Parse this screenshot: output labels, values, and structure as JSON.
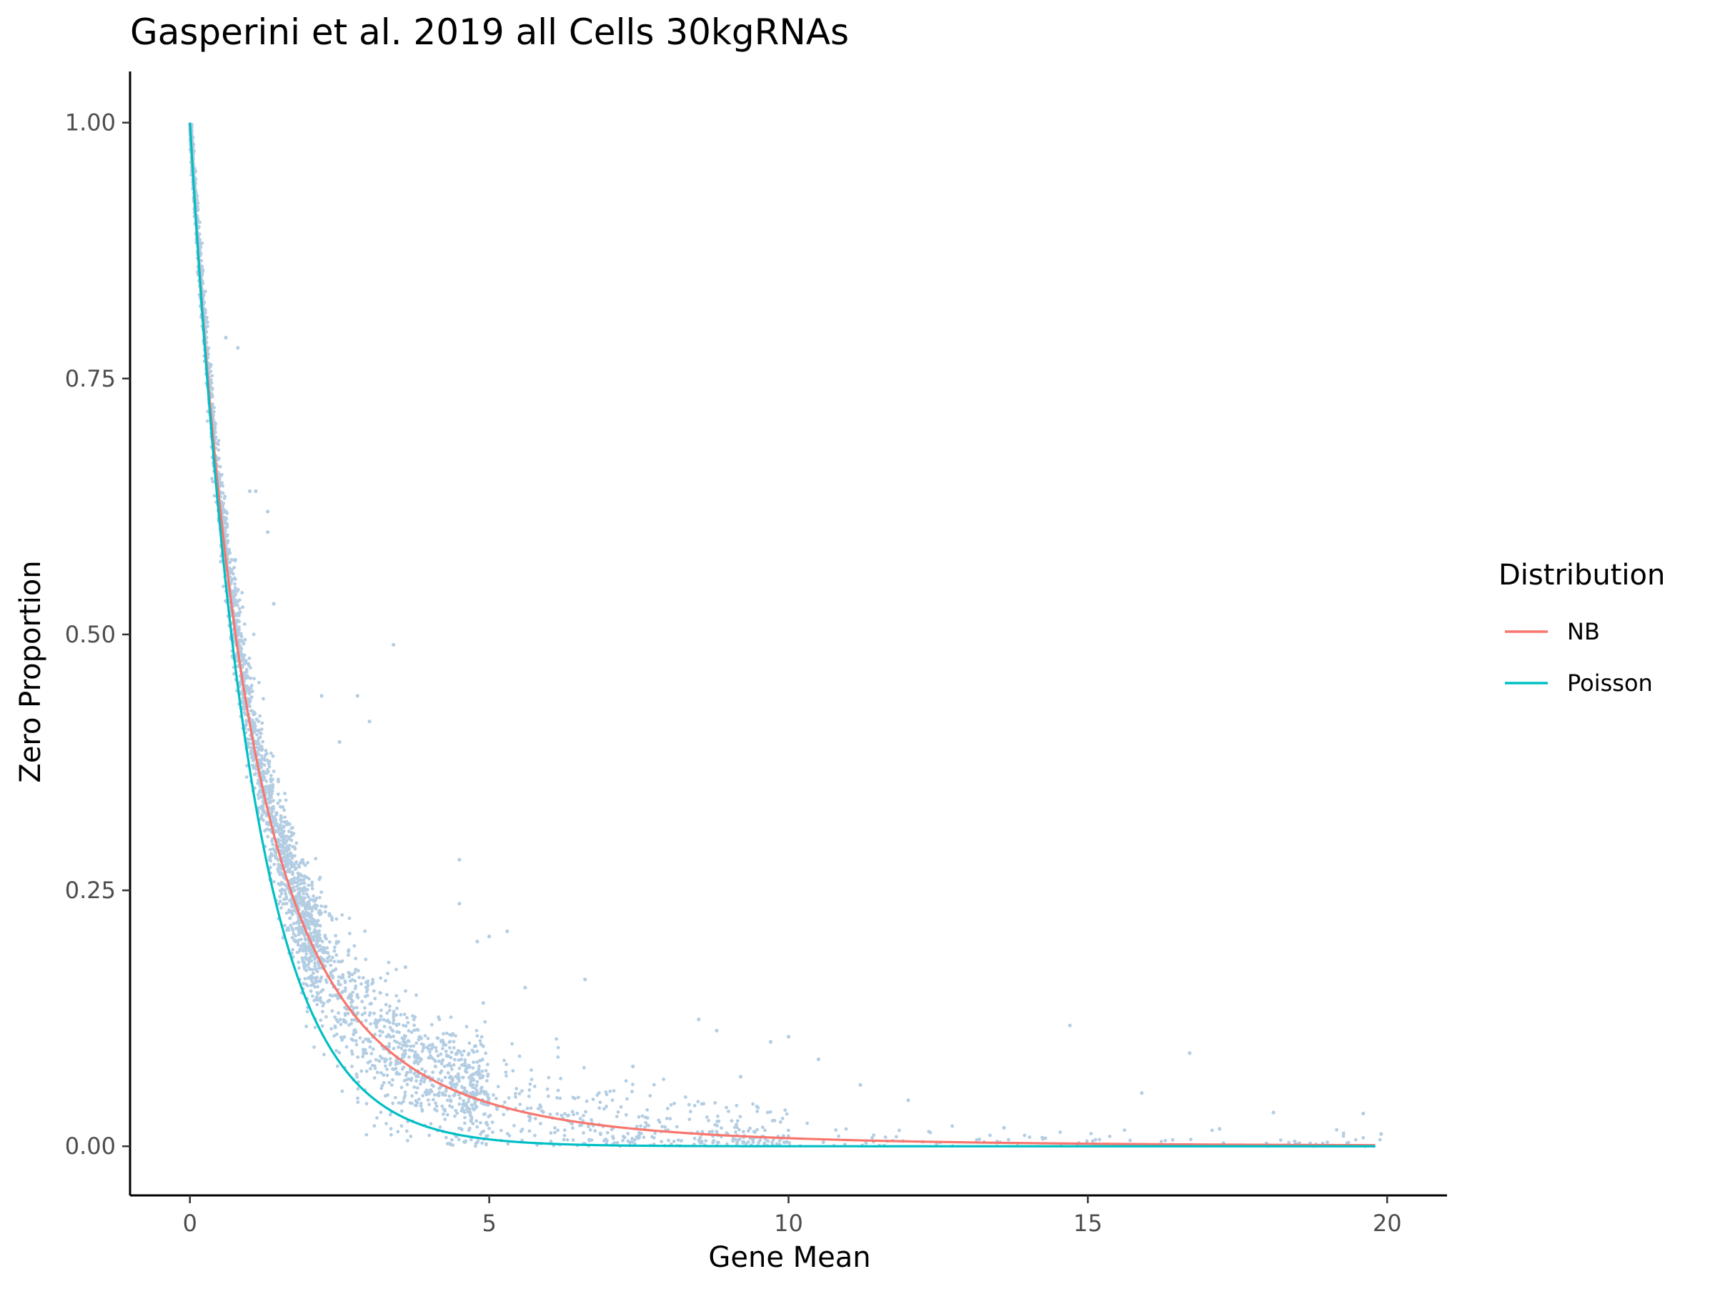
{
  "chart_data": {
    "type": "scatter",
    "title": "Gasperini et al. 2019 all Cells 30kgRNAs",
    "xlabel": "Gene Mean",
    "ylabel": "Zero Proportion",
    "xlim": [
      -1,
      21
    ],
    "ylim": [
      -0.048,
      1.05
    ],
    "xticks": [
      0,
      5,
      10,
      15,
      20
    ],
    "xtick_labels": [
      "0",
      "5",
      "10",
      "15",
      "20"
    ],
    "yticks": [
      0,
      0.25,
      0.5,
      0.75,
      1.0
    ],
    "ytick_labels": [
      "0.00",
      "0.25",
      "0.50",
      "0.75",
      "1.00"
    ],
    "grid": false,
    "legend": {
      "title": "Distribution",
      "position": "right",
      "entries": [
        {
          "label": "NB",
          "color": "#F8766D"
        },
        {
          "label": "Poisson",
          "color": "#00BFC4"
        }
      ]
    },
    "points_color": "#b3cde3",
    "points": {
      "description_x_range": [
        0,
        19.9
      ],
      "curve_model": "zero proportion versus gene mean, scattered around the NB curve",
      "nb_dispersion_phi": 3.7,
      "outliers": [
        [
          3.4,
          0.49
        ],
        [
          3.0,
          0.415
        ],
        [
          2.8,
          0.44
        ],
        [
          2.2,
          0.44
        ],
        [
          2.5,
          0.395
        ],
        [
          1.3,
          0.62
        ],
        [
          1.3,
          0.6
        ],
        [
          4.5,
          0.28
        ],
        [
          4.5,
          0.237
        ],
        [
          5.3,
          0.21
        ],
        [
          4.8,
          0.2
        ],
        [
          5.0,
          0.205
        ],
        [
          6.6,
          0.163
        ],
        [
          8.5,
          0.124
        ],
        [
          8.8,
          0.113
        ],
        [
          10.0,
          0.107
        ],
        [
          9.7,
          0.102
        ],
        [
          14.7,
          0.118
        ],
        [
          16.7,
          0.091
        ],
        [
          15.9,
          0.052
        ],
        [
          11.2,
          0.06
        ],
        [
          18.1,
          0.033
        ],
        [
          19.6,
          0.032
        ],
        [
          12.0,
          0.045
        ],
        [
          0.8,
          0.78
        ],
        [
          0.6,
          0.79
        ],
        [
          1.0,
          0.64
        ],
        [
          1.1,
          0.64
        ],
        [
          1.4,
          0.53
        ],
        [
          3.6,
          0.175
        ],
        [
          4.9,
          0.14
        ],
        [
          5.6,
          0.155
        ],
        [
          7.4,
          0.078
        ],
        [
          9.2,
          0.068
        ],
        [
          10.5,
          0.085
        ],
        [
          13.6,
          0.018
        ],
        [
          17.2,
          0.017
        ],
        [
          19.9,
          0.012
        ]
      ]
    },
    "series": [
      {
        "name": "NB",
        "color": "#F8766D",
        "x_range": [
          0,
          19.8
        ],
        "formula": "(1 + x/3.7)^(-3.7)"
      },
      {
        "name": "Poisson",
        "color": "#00BFC4",
        "x_range": [
          0,
          19.8
        ],
        "formula": "exp(-x)"
      }
    ]
  }
}
